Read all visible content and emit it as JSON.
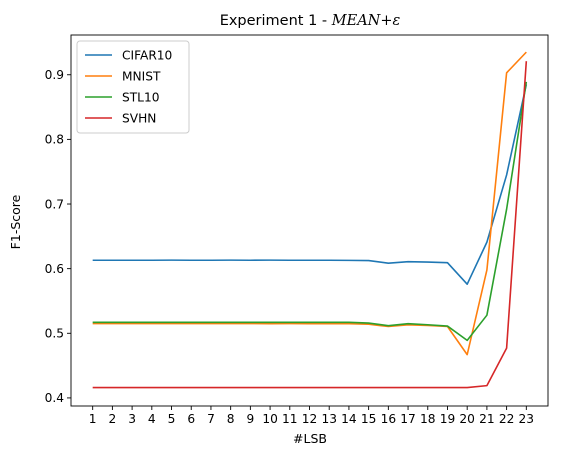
{
  "chart_data": {
    "type": "line",
    "title_prefix": "Experiment 1 - ",
    "title_math": "MEAN+ε",
    "xlabel": "#LSB",
    "ylabel": "F1-Score",
    "x": [
      1,
      2,
      3,
      4,
      5,
      6,
      7,
      8,
      9,
      10,
      11,
      12,
      13,
      14,
      15,
      16,
      17,
      18,
      19,
      20,
      21,
      22,
      23
    ],
    "x_ticks": [
      "1",
      "2",
      "3",
      "4",
      "5",
      "6",
      "7",
      "8",
      "9",
      "10",
      "11",
      "12",
      "13",
      "14",
      "15",
      "16",
      "17",
      "18",
      "19",
      "20",
      "21",
      "22",
      "23"
    ],
    "y_ticks": [
      {
        "value": 0.4,
        "label": "0.4"
      },
      {
        "value": 0.5,
        "label": "0.5"
      },
      {
        "value": 0.6,
        "label": "0.6"
      },
      {
        "value": 0.7,
        "label": "0.7"
      },
      {
        "value": 0.8,
        "label": "0.8"
      },
      {
        "value": 0.9,
        "label": "0.9"
      }
    ],
    "xlim": [
      -0.1,
      24.1
    ],
    "ylim": [
      0.3875,
      0.9615
    ],
    "grid": false,
    "legend_position": "top-left",
    "series": [
      {
        "name": "CIFAR10",
        "color": "#1f77b4",
        "values": [
          0.613,
          0.613,
          0.613,
          0.613,
          0.6132,
          0.613,
          0.613,
          0.6132,
          0.613,
          0.6132,
          0.613,
          0.613,
          0.613,
          0.6128,
          0.6125,
          0.6085,
          0.6108,
          0.6102,
          0.6092,
          0.576,
          0.641,
          0.745,
          0.885
        ]
      },
      {
        "name": "MNIST",
        "color": "#ff7f0e",
        "values": [
          0.515,
          0.515,
          0.515,
          0.515,
          0.515,
          0.515,
          0.515,
          0.515,
          0.515,
          0.5148,
          0.515,
          0.5148,
          0.5148,
          0.5148,
          0.514,
          0.5105,
          0.513,
          0.5122,
          0.5105,
          0.467,
          0.598,
          0.903,
          0.935
        ]
      },
      {
        "name": "STL10",
        "color": "#2ca02c",
        "values": [
          0.517,
          0.517,
          0.517,
          0.517,
          0.517,
          0.517,
          0.517,
          0.517,
          0.517,
          0.517,
          0.517,
          0.517,
          0.517,
          0.517,
          0.5158,
          0.5118,
          0.5148,
          0.5132,
          0.5112,
          0.489,
          0.528,
          0.692,
          0.889
        ]
      },
      {
        "name": "SVHN",
        "color": "#d62728",
        "values": [
          0.416,
          0.416,
          0.416,
          0.416,
          0.416,
          0.416,
          0.416,
          0.416,
          0.416,
          0.416,
          0.416,
          0.416,
          0.416,
          0.416,
          0.416,
          0.416,
          0.416,
          0.416,
          0.416,
          0.416,
          0.419,
          0.477,
          0.921
        ]
      }
    ]
  }
}
